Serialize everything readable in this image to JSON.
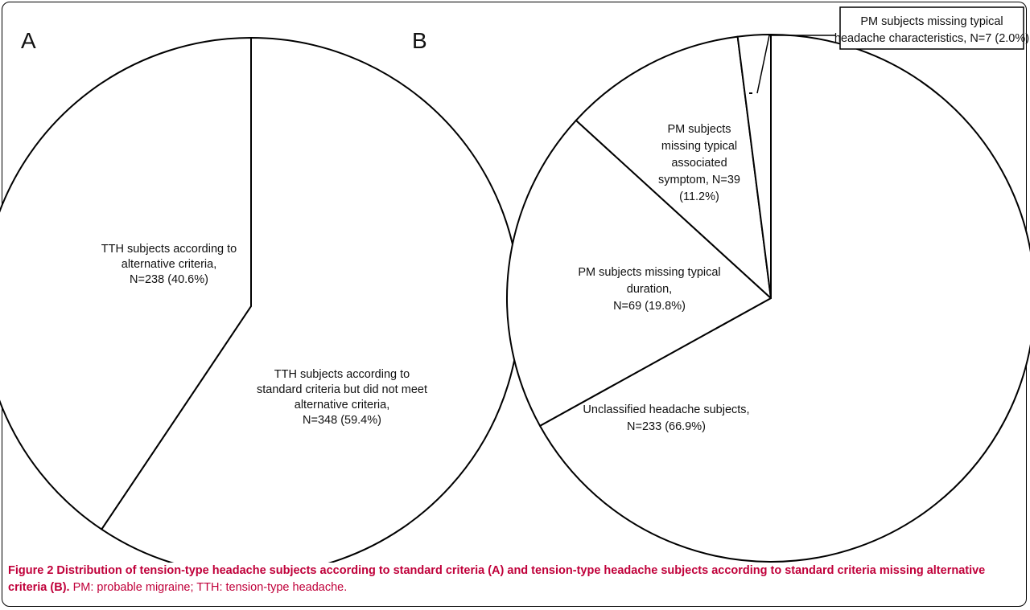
{
  "chart_data": [
    {
      "type": "pie",
      "panel": "A",
      "slices": [
        {
          "label": "TTH subjects according to standard criteria but did not meet alternative criteria,\nN=348 (59.4%)",
          "value": 348,
          "percent": 59.4,
          "lines": [
            "TTH subjects  according to",
            "standard criteria but did not meet",
            "alternative criteria,",
            "N=348 (59.4%)"
          ]
        },
        {
          "label": "TTH subjects according to alternative criteria,\nN=238 (40.6%)",
          "value": 238,
          "percent": 40.6,
          "lines": [
            "TTH subjects  according to",
            "alternative criteria,",
            "N=238 (40.6%)"
          ]
        }
      ]
    },
    {
      "type": "pie",
      "panel": "B",
      "slices": [
        {
          "label": "Unclassified headache subjects,\nN=233 (66.9%)",
          "value": 233,
          "percent": 66.9,
          "lines": [
            "Unclassified headache subjects,",
            "N=233 (66.9%)"
          ]
        },
        {
          "label": "PM subjects missing typical duration,\nN=69 (19.8%)",
          "value": 69,
          "percent": 19.8,
          "lines": [
            "PM subjects missing typical",
            "duration,",
            "N=69 (19.8%)"
          ]
        },
        {
          "label": "PM subjects missing typical associated symptom, N=39 (11.2%)",
          "value": 39,
          "percent": 11.2,
          "lines": [
            "PM subjects",
            "missing typical",
            "associated",
            "symptom, N=39",
            "(11.2%)"
          ]
        },
        {
          "label": "PM subjects missing typical headache characteristics, N=7 (2.0%)",
          "value": 7,
          "percent": 2.0,
          "lines": [
            "PM subjects missing typical",
            "headache characteristics, N=7 (2.0%)"
          ]
        }
      ]
    }
  ],
  "caption": {
    "bold": "Figure 2 Distribution of tension-type headache subjects according to standard criteria (A) and tension-type headache subjects according to standard criteria missing alternative criteria (B).",
    "rest": " PM: probable migraine; TTH: tension-type headache."
  }
}
